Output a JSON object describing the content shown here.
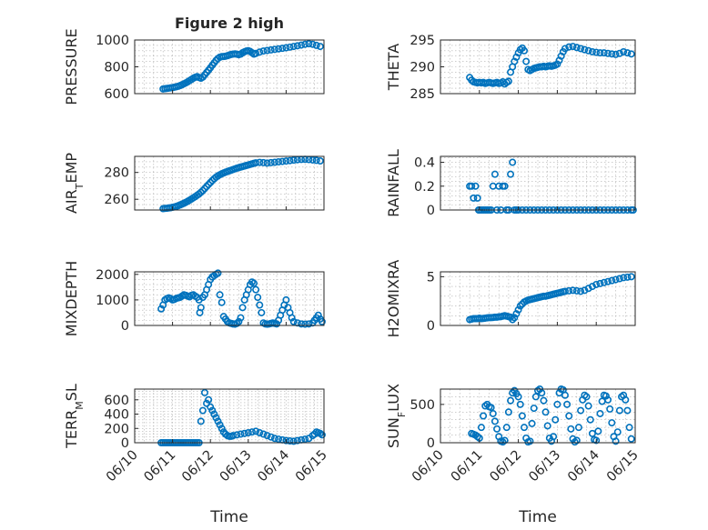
{
  "figure": {
    "title": "Figure 2 high"
  },
  "chart_data": [
    {
      "type": "scatter",
      "marker": "circle",
      "color": "#0072BD",
      "title": "Figure 2 high",
      "ylabel": "PRESSURE",
      "xlabel": "",
      "xlim": [
        0,
        5
      ],
      "ylim": [
        600,
        1000
      ],
      "yticks": [
        600,
        800,
        1000
      ],
      "xticks": [
        0,
        1,
        2,
        3,
        4,
        5
      ],
      "xticklabels": [],
      "grid": true,
      "x": [
        0.75,
        0.8,
        0.85,
        0.9,
        0.95,
        1.0,
        1.05,
        1.1,
        1.15,
        1.2,
        1.25,
        1.3,
        1.35,
        1.4,
        1.45,
        1.5,
        1.55,
        1.6,
        1.65,
        1.7,
        1.75,
        1.8,
        1.85,
        1.9,
        1.95,
        2.0,
        2.05,
        2.1,
        2.15,
        2.2,
        2.25,
        2.3,
        2.35,
        2.4,
        2.45,
        2.5,
        2.55,
        2.6,
        2.65,
        2.7,
        2.75,
        2.8,
        2.85,
        2.9,
        2.95,
        3.0,
        3.05,
        3.1,
        3.15,
        3.2,
        3.3,
        3.4,
        3.5,
        3.6,
        3.7,
        3.8,
        3.9,
        4.0,
        4.1,
        4.2,
        4.3,
        4.4,
        4.5,
        4.6,
        4.7,
        4.8,
        4.9
      ],
      "y": [
        635,
        637,
        639,
        641,
        643,
        645,
        648,
        651,
        655,
        660,
        666,
        673,
        680,
        688,
        697,
        706,
        715,
        722,
        727,
        720,
        715,
        723,
        740,
        758,
        775,
        793,
        812,
        830,
        848,
        862,
        872,
        876,
        877,
        879,
        883,
        888,
        892,
        895,
        897,
        894,
        890,
        895,
        905,
        912,
        918,
        920,
        915,
        905,
        895,
        900,
        910,
        918,
        922,
        926,
        930,
        934,
        938,
        942,
        947,
        952,
        957,
        962,
        968,
        972,
        968,
        960,
        952
      ]
    },
    {
      "type": "scatter",
      "marker": "circle",
      "color": "#0072BD",
      "title": "",
      "ylabel": "THETA",
      "xlabel": "",
      "xlim": [
        0,
        5
      ],
      "ylim": [
        285,
        295
      ],
      "yticks": [
        285,
        290,
        295
      ],
      "xticks": [
        0,
        1,
        2,
        3,
        4,
        5
      ],
      "xticklabels": [],
      "grid": true,
      "x": [
        0.75,
        0.8,
        0.85,
        0.9,
        0.95,
        1.0,
        1.05,
        1.1,
        1.15,
        1.2,
        1.25,
        1.3,
        1.35,
        1.4,
        1.45,
        1.5,
        1.55,
        1.6,
        1.65,
        1.7,
        1.75,
        1.8,
        1.85,
        1.9,
        1.95,
        2.0,
        2.05,
        2.1,
        2.15,
        2.2,
        2.25,
        2.3,
        2.35,
        2.4,
        2.45,
        2.5,
        2.55,
        2.6,
        2.65,
        2.7,
        2.75,
        2.8,
        2.85,
        2.9,
        2.95,
        3.0,
        3.05,
        3.1,
        3.15,
        3.2,
        3.3,
        3.4,
        3.5,
        3.6,
        3.7,
        3.8,
        3.9,
        4.0,
        4.1,
        4.2,
        4.3,
        4.4,
        4.5,
        4.6,
        4.7,
        4.8,
        4.9
      ],
      "y": [
        288,
        287.5,
        287.2,
        287.1,
        287.0,
        287.1,
        287.0,
        287.1,
        286.9,
        287.0,
        287.1,
        287.0,
        286.9,
        287.0,
        287.1,
        286.9,
        287.0,
        287.2,
        286.8,
        287.1,
        287.3,
        289.0,
        290.0,
        291.0,
        291.8,
        292.6,
        293.2,
        293.5,
        293.0,
        291.0,
        289.5,
        289.3,
        289.5,
        289.7,
        289.8,
        289.9,
        290.0,
        290.0,
        290.1,
        290.0,
        290.1,
        290.2,
        290.1,
        290.2,
        290.3,
        290.5,
        291.2,
        292.0,
        292.8,
        293.4,
        293.7,
        293.8,
        293.6,
        293.4,
        293.2,
        293.0,
        292.8,
        292.7,
        292.6,
        292.6,
        292.5,
        292.4,
        292.3,
        292.5,
        292.8,
        292.6,
        292.4
      ]
    },
    {
      "type": "scatter",
      "marker": "circle",
      "color": "#0072BD",
      "title": "",
      "ylabel": "AIR_TEMP",
      "xlabel": "",
      "xlim": [
        0,
        5
      ],
      "ylim": [
        252,
        292
      ],
      "yticks": [
        260,
        280
      ],
      "xticks": [
        0,
        1,
        2,
        3,
        4,
        5
      ],
      "xticklabels": [],
      "grid": true,
      "x": [
        0.75,
        0.8,
        0.85,
        0.9,
        0.95,
        1.0,
        1.05,
        1.1,
        1.15,
        1.2,
        1.25,
        1.3,
        1.35,
        1.4,
        1.45,
        1.5,
        1.55,
        1.6,
        1.65,
        1.7,
        1.75,
        1.8,
        1.85,
        1.9,
        1.95,
        2.0,
        2.05,
        2.1,
        2.15,
        2.2,
        2.25,
        2.3,
        2.35,
        2.4,
        2.45,
        2.5,
        2.55,
        2.6,
        2.65,
        2.7,
        2.75,
        2.8,
        2.85,
        2.9,
        2.95,
        3.0,
        3.05,
        3.1,
        3.15,
        3.2,
        3.3,
        3.4,
        3.5,
        3.6,
        3.7,
        3.8,
        3.9,
        4.0,
        4.1,
        4.2,
        4.3,
        4.4,
        4.5,
        4.6,
        4.7,
        4.8,
        4.9
      ],
      "y": [
        253,
        253.2,
        253.3,
        253.5,
        253.7,
        254,
        254.3,
        254.7,
        255.2,
        255.8,
        256.4,
        257,
        257.7,
        258.5,
        259.3,
        260.2,
        261.1,
        262,
        263,
        264,
        265.2,
        266.5,
        268,
        269.5,
        271,
        272.5,
        274,
        275.3,
        276.5,
        277.5,
        278.3,
        279,
        279.6,
        280.2,
        280.7,
        281.2,
        281.7,
        282.2,
        282.7,
        283.2,
        283.6,
        284,
        284.4,
        284.8,
        285.2,
        285.6,
        286,
        286.4,
        286.8,
        287.2,
        287.5,
        287.3,
        287.0,
        287.3,
        287.6,
        287.9,
        288.2,
        288.5,
        288.8,
        289.2,
        289.5,
        289.7,
        289.8,
        289.6,
        289.3,
        289.0,
        288.6
      ]
    },
    {
      "type": "scatter",
      "marker": "circle",
      "color": "#0072BD",
      "title": "",
      "ylabel": "RAINFALL",
      "xlabel": "",
      "xlim": [
        0,
        5
      ],
      "ylim": [
        0,
        0.45
      ],
      "yticks": [
        0,
        0.2,
        0.4
      ],
      "xticks": [
        0,
        1,
        2,
        3,
        4,
        5
      ],
      "xticklabels": [],
      "grid": true,
      "x": [
        0.75,
        0.8,
        0.85,
        0.9,
        0.95,
        0.98,
        1.0,
        1.05,
        1.1,
        1.15,
        1.2,
        1.25,
        1.3,
        1.35,
        1.4,
        1.45,
        1.5,
        1.55,
        1.6,
        1.65,
        1.7,
        1.75,
        1.8,
        1.85,
        1.9,
        1.95,
        2.0,
        2.1,
        2.2,
        2.3,
        2.4,
        2.5,
        2.6,
        2.7,
        2.8,
        2.9,
        3.0,
        3.1,
        3.2,
        3.3,
        3.4,
        3.5,
        3.6,
        3.7,
        3.8,
        3.9,
        4.0,
        4.1,
        4.2,
        4.3,
        4.4,
        4.5,
        4.6,
        4.7,
        4.8,
        4.9,
        4.95
      ],
      "y": [
        0.2,
        0.2,
        0.1,
        0.2,
        0.1,
        0,
        0,
        0,
        0,
        0,
        0,
        0,
        0,
        0.2,
        0.3,
        0,
        0.2,
        0,
        0.2,
        0.2,
        0,
        0,
        0.3,
        0.4,
        0,
        0,
        0,
        0,
        0,
        0,
        0,
        0,
        0,
        0,
        0,
        0,
        0,
        0,
        0,
        0,
        0,
        0,
        0,
        0,
        0,
        0,
        0,
        0,
        0,
        0,
        0,
        0,
        0,
        0,
        0,
        0,
        0
      ]
    },
    {
      "type": "scatter",
      "marker": "circle",
      "color": "#0072BD",
      "title": "",
      "ylabel": "MIXDEPTH",
      "xlabel": "",
      "xlim": [
        0,
        5
      ],
      "ylim": [
        0,
        2100
      ],
      "yticks": [
        0,
        1000,
        2000
      ],
      "xticks": [
        0,
        1,
        2,
        3,
        4,
        5
      ],
      "xticklabels": [],
      "grid": true,
      "x": [
        0.7,
        0.75,
        0.8,
        0.85,
        0.9,
        0.95,
        1.0,
        1.05,
        1.1,
        1.15,
        1.2,
        1.25,
        1.3,
        1.35,
        1.4,
        1.45,
        1.5,
        1.55,
        1.6,
        1.65,
        1.7,
        1.72,
        1.75,
        1.8,
        1.85,
        1.9,
        1.95,
        2.0,
        2.05,
        2.1,
        2.15,
        2.2,
        2.25,
        2.3,
        2.35,
        2.4,
        2.45,
        2.5,
        2.55,
        2.6,
        2.65,
        2.7,
        2.75,
        2.8,
        2.85,
        2.9,
        2.95,
        3.0,
        3.05,
        3.1,
        3.15,
        3.2,
        3.25,
        3.3,
        3.35,
        3.4,
        3.45,
        3.5,
        3.55,
        3.6,
        3.65,
        3.7,
        3.75,
        3.8,
        3.85,
        3.9,
        3.95,
        4.0,
        4.05,
        4.1,
        4.15,
        4.2,
        4.3,
        4.4,
        4.5,
        4.6,
        4.7,
        4.75,
        4.8,
        4.85,
        4.9,
        4.95
      ],
      "y": [
        650,
        800,
        1000,
        1050,
        1080,
        1050,
        1000,
        1020,
        1060,
        1080,
        1100,
        1150,
        1200,
        1180,
        1150,
        1120,
        1180,
        1200,
        1150,
        1100,
        1000,
        500,
        700,
        1100,
        1200,
        1400,
        1600,
        1800,
        1900,
        1950,
        2000,
        2050,
        1200,
        900,
        350,
        250,
        150,
        100,
        80,
        60,
        50,
        80,
        150,
        300,
        700,
        1000,
        1200,
        1400,
        1600,
        1700,
        1650,
        1400,
        1100,
        800,
        500,
        100,
        60,
        50,
        60,
        80,
        100,
        80,
        60,
        200,
        400,
        600,
        800,
        1000,
        700,
        500,
        300,
        150,
        100,
        60,
        50,
        60,
        100,
        200,
        300,
        400,
        250,
        150
      ]
    },
    {
      "type": "scatter",
      "marker": "circle",
      "color": "#0072BD",
      "title": "",
      "ylabel": "H2OMIXRA",
      "xlabel": "",
      "xlim": [
        0,
        5
      ],
      "ylim": [
        0,
        5.5
      ],
      "yticks": [
        0,
        5
      ],
      "xticks": [
        0,
        1,
        2,
        3,
        4,
        5
      ],
      "xticklabels": [],
      "grid": true,
      "x": [
        0.75,
        0.8,
        0.85,
        0.9,
        0.95,
        1.0,
        1.05,
        1.1,
        1.15,
        1.2,
        1.25,
        1.3,
        1.35,
        1.4,
        1.45,
        1.5,
        1.55,
        1.6,
        1.65,
        1.7,
        1.75,
        1.8,
        1.85,
        1.9,
        1.95,
        2.0,
        2.05,
        2.1,
        2.15,
        2.2,
        2.25,
        2.3,
        2.35,
        2.4,
        2.45,
        2.5,
        2.55,
        2.6,
        2.65,
        2.7,
        2.75,
        2.8,
        2.85,
        2.9,
        2.95,
        3.0,
        3.05,
        3.1,
        3.15,
        3.2,
        3.3,
        3.4,
        3.5,
        3.6,
        3.7,
        3.8,
        3.9,
        4.0,
        4.1,
        4.2,
        4.3,
        4.4,
        4.5,
        4.6,
        4.7,
        4.8,
        4.9
      ],
      "y": [
        0.6,
        0.65,
        0.7,
        0.7,
        0.7,
        0.75,
        0.7,
        0.72,
        0.75,
        0.78,
        0.8,
        0.8,
        0.82,
        0.85,
        0.85,
        0.88,
        0.9,
        0.95,
        1.0,
        0.95,
        0.9,
        0.85,
        0.6,
        0.8,
        1.2,
        1.6,
        2.0,
        2.2,
        2.4,
        2.5,
        2.6,
        2.65,
        2.7,
        2.75,
        2.8,
        2.85,
        2.9,
        2.95,
        3.0,
        3.0,
        3.05,
        3.1,
        3.15,
        3.2,
        3.25,
        3.3,
        3.35,
        3.4,
        3.45,
        3.5,
        3.55,
        3.6,
        3.55,
        3.5,
        3.6,
        3.8,
        4.0,
        4.2,
        4.3,
        4.4,
        4.5,
        4.6,
        4.7,
        4.8,
        4.9,
        4.95,
        5.0
      ]
    },
    {
      "type": "scatter",
      "marker": "circle",
      "color": "#0072BD",
      "title": "",
      "ylabel": "TERR_MSL",
      "xlabel": "Time",
      "xlim": [
        0,
        5
      ],
      "ylim": [
        0,
        750
      ],
      "yticks": [
        0,
        200,
        400,
        600
      ],
      "xticks": [
        0,
        1,
        2,
        3,
        4,
        5
      ],
      "xticklabels": [
        "06/10",
        "06/11",
        "06/12",
        "06/13",
        "06/14",
        "06/15"
      ],
      "grid": true,
      "x": [
        0.7,
        0.75,
        0.8,
        0.85,
        0.9,
        0.95,
        1.0,
        1.05,
        1.1,
        1.15,
        1.2,
        1.25,
        1.3,
        1.35,
        1.4,
        1.45,
        1.5,
        1.55,
        1.6,
        1.65,
        1.7,
        1.75,
        1.8,
        1.85,
        1.9,
        1.95,
        2.0,
        2.05,
        2.1,
        2.15,
        2.2,
        2.25,
        2.3,
        2.35,
        2.4,
        2.45,
        2.5,
        2.55,
        2.6,
        2.7,
        2.8,
        2.9,
        3.0,
        3.1,
        3.2,
        3.3,
        3.4,
        3.5,
        3.6,
        3.7,
        3.8,
        3.9,
        4.0,
        4.1,
        4.2,
        4.3,
        4.4,
        4.5,
        4.6,
        4.7,
        4.75,
        4.8,
        4.85,
        4.9,
        4.95
      ],
      "y": [
        0,
        0,
        0,
        0,
        0,
        0,
        0,
        0,
        0,
        0,
        0,
        0,
        0,
        0,
        0,
        0,
        0,
        0,
        0,
        0,
        0,
        300,
        450,
        700,
        550,
        600,
        500,
        450,
        400,
        350,
        300,
        250,
        200,
        150,
        120,
        100,
        90,
        90,
        100,
        110,
        120,
        130,
        140,
        150,
        160,
        140,
        120,
        100,
        80,
        60,
        50,
        40,
        30,
        25,
        20,
        30,
        40,
        50,
        60,
        100,
        120,
        150,
        140,
        130,
        110
      ]
    },
    {
      "type": "scatter",
      "marker": "circle",
      "color": "#0072BD",
      "title": "",
      "ylabel": "SUN_FLUX",
      "xlabel": "Time",
      "xlim": [
        0,
        5
      ],
      "ylim": [
        0,
        700
      ],
      "yticks": [
        0,
        500
      ],
      "xticks": [
        0,
        1,
        2,
        3,
        4,
        5
      ],
      "xticklabels": [
        "06/10",
        "06/11",
        "06/12",
        "06/13",
        "06/14",
        "06/15"
      ],
      "grid": true,
      "x": [
        0.8,
        0.85,
        0.9,
        0.95,
        1.0,
        1.05,
        1.1,
        1.15,
        1.2,
        1.25,
        1.3,
        1.35,
        1.4,
        1.45,
        1.5,
        1.55,
        1.6,
        1.65,
        1.7,
        1.75,
        1.8,
        1.85,
        1.9,
        1.95,
        2.0,
        2.05,
        2.1,
        2.15,
        2.2,
        2.25,
        2.3,
        2.35,
        2.4,
        2.45,
        2.5,
        2.55,
        2.6,
        2.65,
        2.7,
        2.75,
        2.8,
        2.85,
        2.9,
        2.95,
        3.0,
        3.05,
        3.1,
        3.15,
        3.2,
        3.25,
        3.3,
        3.35,
        3.4,
        3.45,
        3.5,
        3.55,
        3.6,
        3.65,
        3.7,
        3.75,
        3.8,
        3.85,
        3.9,
        3.95,
        4.0,
        4.05,
        4.1,
        4.15,
        4.2,
        4.25,
        4.3,
        4.35,
        4.4,
        4.45,
        4.5,
        4.55,
        4.6,
        4.65,
        4.7,
        4.75,
        4.8,
        4.85,
        4.9
      ],
      "y": [
        120,
        110,
        100,
        80,
        60,
        200,
        350,
        480,
        500,
        470,
        460,
        380,
        280,
        180,
        80,
        20,
        10,
        30,
        200,
        400,
        550,
        650,
        680,
        640,
        600,
        500,
        350,
        200,
        60,
        10,
        20,
        250,
        450,
        600,
        680,
        700,
        650,
        550,
        400,
        220,
        60,
        20,
        80,
        300,
        500,
        650,
        700,
        690,
        620,
        500,
        350,
        180,
        50,
        10,
        30,
        200,
        420,
        560,
        620,
        600,
        480,
        300,
        120,
        40,
        30,
        150,
        380,
        540,
        620,
        610,
        560,
        440,
        260,
        80,
        20,
        140,
        420,
        600,
        620,
        560,
        420,
        200,
        50
      ]
    }
  ]
}
